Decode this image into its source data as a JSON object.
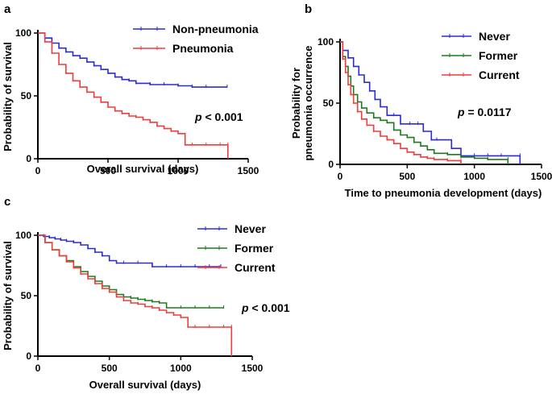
{
  "colors": {
    "blue": "#2a2ad6",
    "red": "#f03c3c",
    "green": "#1e7a1e"
  },
  "chart_data": [
    {
      "panel": "a",
      "type": "line",
      "step": true,
      "xlabel": "Overall survival (days)",
      "ylabel": "Probability of survival",
      "xlim": [
        0,
        1500
      ],
      "ylim": [
        0,
        100
      ],
      "xticks": [
        0,
        500,
        1000,
        1500
      ],
      "yticks": [
        0,
        50,
        100
      ],
      "legend_placement": "top-right",
      "annotation": {
        "p": "p",
        "rest": " < 0.001"
      },
      "series": [
        {
          "name": "Non-pneumonia",
          "color": "blue",
          "x": [
            0,
            50,
            100,
            150,
            200,
            250,
            300,
            350,
            400,
            450,
            500,
            550,
            600,
            650,
            700,
            800,
            900,
            1000,
            1100,
            1200,
            1350
          ],
          "y": [
            100,
            96,
            92,
            88,
            85,
            82,
            80,
            77,
            74,
            71,
            68,
            65,
            63,
            62,
            60,
            59,
            59,
            58,
            57,
            57,
            57
          ]
        },
        {
          "name": "Pneumonia",
          "color": "red",
          "x": [
            0,
            50,
            100,
            150,
            200,
            250,
            300,
            350,
            400,
            450,
            500,
            550,
            600,
            650,
            700,
            750,
            800,
            850,
            900,
            950,
            1000,
            1050,
            1100,
            1200,
            1300,
            1355,
            1355
          ],
          "y": [
            100,
            93,
            84,
            75,
            68,
            62,
            57,
            53,
            49,
            45,
            41,
            38,
            36,
            34,
            33,
            31,
            29,
            26,
            24,
            22,
            20,
            11,
            11,
            11,
            11,
            11,
            0
          ]
        }
      ]
    },
    {
      "panel": "b",
      "type": "line",
      "step": true,
      "xlabel": "Time to pneumonia development (days)",
      "ylabel": "Probability for\npneumonia occurrence",
      "xlim": [
        0,
        1500
      ],
      "ylim": [
        0,
        100
      ],
      "xticks": [
        0,
        500,
        1000,
        1500
      ],
      "yticks": [
        0,
        50,
        100
      ],
      "legend_placement": "top-right",
      "annotation": {
        "p": "p",
        "rest": " = 0.0117"
      },
      "series": [
        {
          "name": "Never",
          "color": "blue",
          "x": [
            0,
            20,
            60,
            100,
            140,
            180,
            220,
            260,
            300,
            350,
            400,
            450,
            520,
            580,
            620,
            680,
            720,
            830,
            900,
            1000,
            1100,
            1200,
            1340,
            1340
          ],
          "y": [
            100,
            93,
            87,
            80,
            73,
            67,
            60,
            53,
            47,
            40,
            40,
            33,
            33,
            33,
            27,
            20,
            20,
            13,
            7,
            7,
            7,
            7,
            7,
            0
          ]
        },
        {
          "name": "Former",
          "color": "green",
          "x": [
            0,
            20,
            40,
            60,
            80,
            100,
            130,
            160,
            200,
            250,
            300,
            350,
            400,
            450,
            500,
            550,
            600,
            650,
            700,
            800,
            900,
            1000,
            1100,
            1250,
            1250
          ],
          "y": [
            100,
            88,
            80,
            72,
            64,
            57,
            51,
            46,
            42,
            38,
            36,
            34,
            28,
            24,
            22,
            18,
            15,
            12,
            9,
            8,
            6,
            5,
            4,
            4,
            0
          ]
        },
        {
          "name": "Current",
          "color": "red",
          "x": [
            0,
            20,
            40,
            60,
            80,
            100,
            130,
            160,
            200,
            250,
            300,
            350,
            400,
            450,
            500,
            550,
            600,
            650,
            700,
            800,
            900,
            900
          ],
          "y": [
            100,
            86,
            75,
            65,
            57,
            50,
            43,
            37,
            32,
            27,
            23,
            20,
            17,
            13,
            10,
            8,
            6,
            5,
            4,
            3,
            3,
            0
          ]
        }
      ]
    },
    {
      "panel": "c",
      "type": "line",
      "step": true,
      "xlabel": "Overall survival (days)",
      "ylabel": "Probability of survival",
      "xlim": [
        0,
        1500
      ],
      "ylim": [
        0,
        100
      ],
      "xticks": [
        0,
        500,
        1000,
        1500
      ],
      "yticks": [
        0,
        50,
        100
      ],
      "legend_placement": "top-right",
      "annotation": {
        "p": "p",
        "rest": " < 0.001"
      },
      "series": [
        {
          "name": "Never",
          "color": "blue",
          "x": [
            0,
            40,
            80,
            120,
            160,
            200,
            250,
            300,
            350,
            400,
            450,
            500,
            550,
            600,
            700,
            800,
            900,
            1000,
            1100,
            1200,
            1280
          ],
          "y": [
            100,
            99,
            98,
            97,
            96,
            95,
            94,
            92,
            89,
            86,
            83,
            79,
            77,
            77,
            77,
            74,
            74,
            74,
            74,
            74,
            74
          ]
        },
        {
          "name": "Former",
          "color": "green",
          "x": [
            0,
            50,
            100,
            150,
            200,
            250,
            300,
            350,
            400,
            450,
            500,
            550,
            600,
            650,
            700,
            750,
            800,
            850,
            900,
            1000,
            1100,
            1200,
            1300
          ],
          "y": [
            100,
            94,
            88,
            83,
            79,
            74,
            70,
            66,
            62,
            58,
            55,
            51,
            49,
            48,
            47,
            46,
            45,
            44,
            40,
            40,
            40,
            40,
            40
          ]
        },
        {
          "name": "Current",
          "color": "red",
          "x": [
            0,
            50,
            100,
            150,
            200,
            250,
            300,
            350,
            400,
            450,
            500,
            550,
            600,
            650,
            700,
            750,
            800,
            850,
            900,
            950,
            1000,
            1050,
            1100,
            1200,
            1300,
            1355,
            1355
          ],
          "y": [
            100,
            94,
            88,
            83,
            78,
            73,
            68,
            64,
            60,
            56,
            53,
            49,
            46,
            44,
            43,
            41,
            40,
            38,
            36,
            34,
            32,
            24,
            24,
            24,
            24,
            24,
            0
          ]
        }
      ]
    }
  ]
}
